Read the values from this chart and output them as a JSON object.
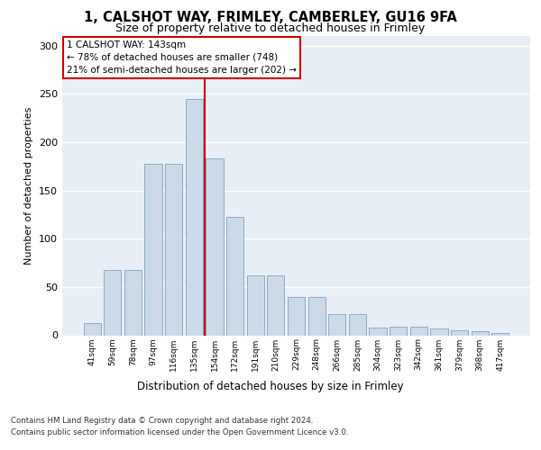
{
  "title1": "1, CALSHOT WAY, FRIMLEY, CAMBERLEY, GU16 9FA",
  "title2": "Size of property relative to detached houses in Frimley",
  "xlabel": "Distribution of detached houses by size in Frimley",
  "ylabel": "Number of detached properties",
  "categories": [
    "41sqm",
    "59sqm",
    "78sqm",
    "97sqm",
    "116sqm",
    "135sqm",
    "154sqm",
    "172sqm",
    "191sqm",
    "210sqm",
    "229sqm",
    "248sqm",
    "266sqm",
    "285sqm",
    "304sqm",
    "323sqm",
    "342sqm",
    "361sqm",
    "379sqm",
    "398sqm",
    "417sqm"
  ],
  "values": [
    13,
    68,
    68,
    178,
    178,
    245,
    183,
    123,
    62,
    62,
    40,
    40,
    22,
    22,
    8,
    9,
    9,
    7,
    5,
    4,
    2
  ],
  "bar_color": "#ccd9e8",
  "bar_edge_color": "#7ba4c4",
  "marker_line_color": "#cc0000",
  "box_text_line1": "1 CALSHOT WAY: 143sqm",
  "box_text_line2": "← 78% of detached houses are smaller (748)",
  "box_text_line3": "21% of semi-detached houses are larger (202) →",
  "box_color": "#ffffff",
  "box_edge_color": "#cc0000",
  "ylim": [
    0,
    310
  ],
  "yticks": [
    0,
    50,
    100,
    150,
    200,
    250,
    300
  ],
  "bg_color": "#e8eef5",
  "footer1": "Contains HM Land Registry data © Crown copyright and database right 2024.",
  "footer2": "Contains public sector information licensed under the Open Government Licence v3.0."
}
